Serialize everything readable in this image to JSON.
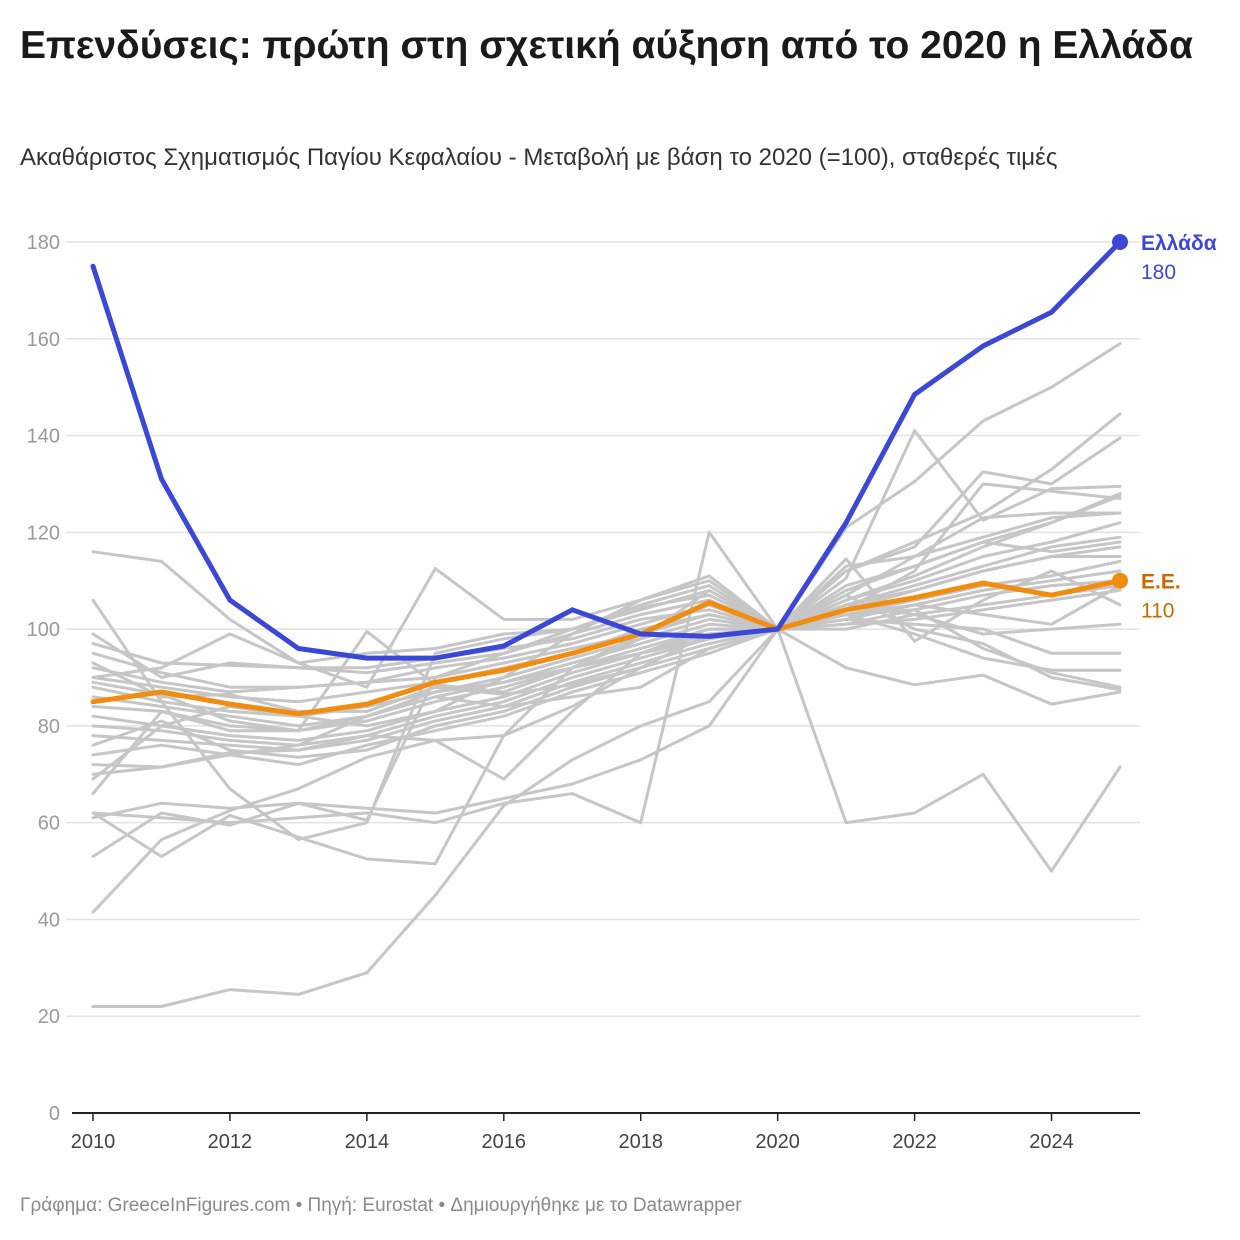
{
  "title": "Επενδύσεις: πρώτη στη σχετική αύξηση από το 2020 η Ελλάδα",
  "subtitle": "Ακαθάριστος Σχηματισμός Παγίου Κεφαλαίου - Μεταβολή με βάση το 2020 (=100), σταθερές τιμές",
  "footer": "Γράφημα: GreeceInFigures.com • Πηγή: Eurostat • Δημιουργήθηκε με το Datawrapper",
  "colors": {
    "greece": "#3b48d6",
    "eu": "#f28c0f",
    "eu_label": "#c96a00",
    "other": "#c6c6c6",
    "grid": "#e2e2e2",
    "axis_text": "#9a9a9a"
  },
  "chart_data": {
    "type": "line",
    "x": [
      2010,
      2011,
      2012,
      2013,
      2014,
      2015,
      2016,
      2017,
      2018,
      2019,
      2020,
      2021,
      2022,
      2023,
      2024,
      2025
    ],
    "x_ticks": [
      "2010",
      "2012",
      "2014",
      "2016",
      "2018",
      "2020",
      "2022",
      "2024"
    ],
    "y_ticks": [
      "0",
      "20",
      "40",
      "60",
      "80",
      "100",
      "120",
      "140",
      "160",
      "180"
    ],
    "ylim": [
      0,
      180
    ],
    "grid": true,
    "highlighted": [
      {
        "name": "Ελλάδα",
        "end_label": "180",
        "color": "#3b48d6",
        "label_color": "#3b48d6",
        "values": [
          175,
          131,
          106,
          96,
          94,
          94,
          96.5,
          104,
          99,
          98.5,
          100,
          122,
          148.5,
          158.5,
          165.5,
          180
        ]
      },
      {
        "name": "Ε.Ε.",
        "end_label": "110",
        "color": "#f28c0f",
        "label_color": "#c96a00",
        "values": [
          85,
          87,
          84.5,
          82.5,
          84.5,
          89,
          91.5,
          95,
          99,
          105.5,
          100,
          104,
          106.5,
          109.5,
          107,
          110
        ]
      }
    ],
    "background_series": [
      [
        22,
        22,
        25.5,
        24.5,
        29,
        45,
        63.5,
        73,
        80,
        85,
        100,
        105,
        109,
        113,
        117,
        119
      ],
      [
        41.5,
        56.5,
        62.5,
        67,
        73.5,
        77,
        69,
        83,
        95,
        100,
        100,
        106,
        111,
        117,
        122,
        128
      ],
      [
        53,
        62,
        59.5,
        64,
        60.5,
        90,
        95,
        100,
        104.5,
        107,
        100,
        108,
        113,
        118,
        122,
        127.5
      ],
      [
        62,
        53,
        61.5,
        57,
        52.5,
        51.5,
        78,
        92,
        98,
        108,
        100,
        121,
        130.5,
        143,
        150,
        159
      ],
      [
        116,
        114,
        102,
        93,
        95,
        96,
        99,
        100,
        104,
        108,
        100,
        113,
        115,
        123,
        124,
        124
      ],
      [
        106,
        85,
        67,
        56.5,
        60,
        95,
        98,
        100,
        105,
        109,
        100,
        110.5,
        141,
        122.5,
        129,
        129.5
      ],
      [
        99,
        90,
        93,
        92,
        91,
        93,
        95,
        99,
        103,
        106,
        100,
        104,
        112,
        130,
        128.5,
        127
      ],
      [
        97,
        93,
        92.5,
        92,
        92,
        94,
        96,
        98,
        102,
        104,
        100,
        107,
        115,
        119,
        123,
        124
      ],
      [
        95,
        91,
        88,
        88,
        89,
        92,
        94,
        97,
        101,
        105,
        100,
        109,
        113,
        118,
        116,
        118
      ],
      [
        92,
        89,
        87,
        88,
        89,
        90,
        93,
        96,
        99,
        103,
        100,
        106,
        110,
        115,
        118,
        122
      ],
      [
        90,
        88,
        86,
        85,
        87,
        89,
        92,
        95,
        100,
        103,
        100,
        105,
        108,
        112,
        115,
        117
      ],
      [
        88,
        85,
        83,
        82,
        84,
        87,
        90,
        94,
        98,
        102,
        100,
        103,
        106,
        109,
        111,
        114
      ],
      [
        86,
        84,
        82,
        80,
        82,
        86,
        89,
        93,
        97,
        101,
        100,
        102,
        105,
        108,
        110,
        112
      ],
      [
        84,
        83,
        80,
        79,
        81,
        85,
        88,
        92,
        96,
        100,
        100,
        101,
        104,
        107,
        109,
        110
      ],
      [
        82,
        80,
        78,
        77,
        79,
        83,
        86,
        91,
        95,
        99,
        100,
        100,
        103,
        105,
        107,
        109
      ],
      [
        80,
        79,
        77,
        76,
        78,
        82,
        85,
        90,
        94,
        98,
        100,
        101,
        102,
        104,
        106,
        108
      ],
      [
        78,
        77,
        76,
        75,
        77,
        81,
        84,
        89,
        93,
        97,
        100,
        114.5,
        97.5,
        106,
        112,
        105
      ],
      [
        76,
        81,
        75,
        73.5,
        75,
        80,
        83,
        88,
        92,
        96,
        100,
        104,
        108,
        112,
        115,
        115
      ],
      [
        74,
        76,
        74,
        72,
        76,
        79,
        82,
        87,
        91,
        95,
        100,
        105,
        103,
        99,
        100,
        101
      ],
      [
        72,
        71.5,
        74.5,
        75,
        78,
        77,
        78,
        84,
        92,
        99,
        100,
        103,
        104,
        96,
        91,
        88
      ],
      [
        70,
        71.5,
        74,
        76,
        82,
        87,
        89,
        92,
        95,
        98,
        100,
        102,
        101,
        100,
        95,
        95
      ],
      [
        69,
        80,
        84,
        82,
        80,
        83,
        90,
        99,
        106,
        110,
        100,
        103,
        99,
        94,
        91.5,
        91.5
      ],
      [
        66,
        83,
        79,
        79,
        99.5,
        88.5,
        87,
        92,
        99,
        105,
        100,
        107,
        100,
        97,
        90,
        87.5
      ],
      [
        62,
        61,
        60,
        61,
        62,
        60,
        64,
        66,
        60,
        120,
        100,
        92,
        88.5,
        90.5,
        84.5,
        87
      ],
      [
        61,
        64,
        63,
        64,
        63,
        62,
        65,
        68,
        73,
        80,
        100,
        60,
        62,
        70,
        50,
        71.5
      ],
      [
        90,
        92,
        99,
        93,
        88,
        112.5,
        102,
        102,
        106,
        111,
        100,
        112,
        117,
        132.5,
        130,
        139.5
      ],
      [
        89,
        86.5,
        81,
        79,
        82,
        86,
        84,
        86,
        88,
        96,
        100,
        112,
        118,
        124,
        133,
        144.5
      ],
      [
        93,
        86,
        86.5,
        83,
        83,
        88,
        86.5,
        88.5,
        92,
        99,
        100,
        103,
        105,
        103,
        101,
        109
      ]
    ]
  }
}
